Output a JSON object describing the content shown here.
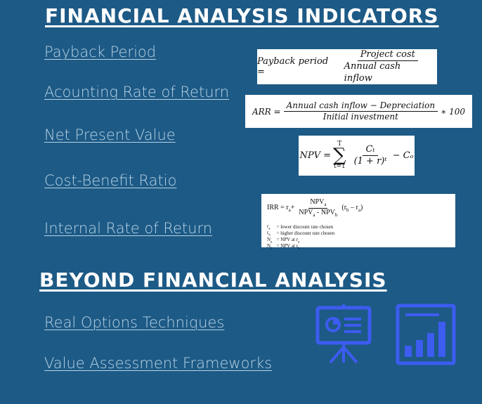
{
  "sections": {
    "financial_title": "FINANCIAL ANALYSIS INDICATORS",
    "beyond_title": "BEYOND FINANCIAL ANALYSIS"
  },
  "links": {
    "payback": "Payback Period",
    "arr": "Acounting Rate of Return",
    "npv": "Net Present Value",
    "cbr": "Cost-Benefit Ratio",
    "irr": "Internal Rate of Return",
    "real_options": "Real Options Techniques",
    "value_assessment": "Value Assessment Frameworks"
  },
  "formulas": {
    "payback": {
      "lhs": "Payback period =",
      "num": "Project cost",
      "den": "Annual cash inflow"
    },
    "arr": {
      "lhs": "ARR =",
      "num": "Annual cash inflow − Depreciation",
      "den": "Initial investment",
      "tail": "∗ 100"
    },
    "npv": {
      "lhs": "NPV =",
      "sum_top": "T",
      "sum_bottom": "t=1",
      "num": "Cₜ",
      "den": "(1 + r)ᵗ",
      "tail": "− Cₒ"
    },
    "irr": {
      "lhs": "IRR = r",
      "lhs_sub": "a",
      "plus": "+",
      "tail": "(r",
      "legend": [
        {
          "sym": "r",
          "sub": "a",
          "desc": "= lower discount rate chosen"
        },
        {
          "sym": "r",
          "sub": "b",
          "desc": "= higher discount rate chosen"
        },
        {
          "sym": "N",
          "sub": "a",
          "desc": "= NPV at r"
        },
        {
          "sym": "N",
          "sub": "b",
          "desc": "= NPV at r"
        }
      ]
    }
  },
  "icons": [
    "presentation-board-icon",
    "bar-chart-report-icon"
  ],
  "colors": {
    "background": "#1d5a86",
    "link": "#b8d3e4",
    "heading": "#ffffff",
    "icon": "#3d5cf0"
  }
}
